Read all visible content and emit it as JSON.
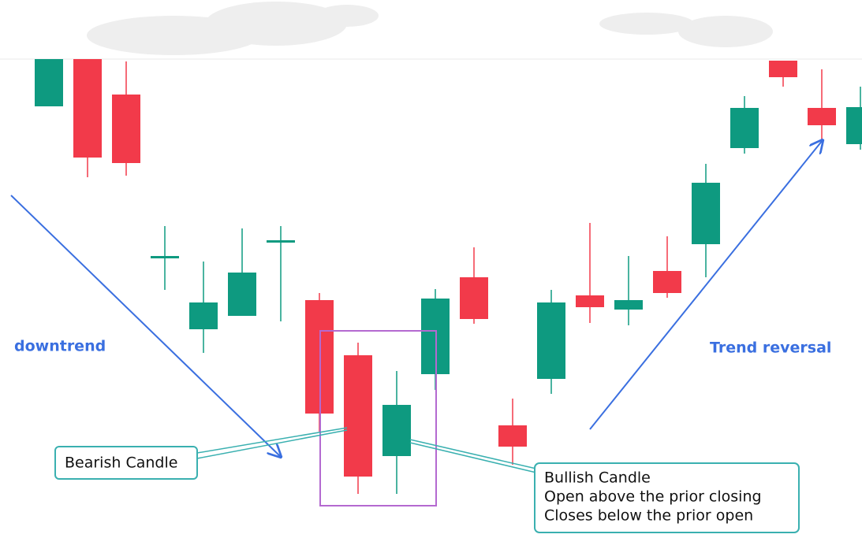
{
  "chart_data": {
    "type": "candlestick",
    "open": [
      548,
      608,
      563,
      355,
      265,
      282,
      378,
      302,
      232,
      104,
      208,
      331,
      143,
      202,
      308,
      290,
      339,
      373,
      495,
      606,
      546,
      500
    ],
    "high": [
      608,
      608,
      605,
      396,
      351,
      393,
      396,
      311,
      248,
      212,
      316,
      369,
      177,
      315,
      400,
      358,
      383,
      475,
      561,
      606,
      595,
      573
    ],
    "low": [
      548,
      458,
      460,
      315,
      235,
      282,
      275,
      135,
      56,
      56,
      188,
      272,
      93,
      183,
      273,
      270,
      305,
      331,
      488,
      573,
      506,
      493
    ],
    "close": [
      608,
      483,
      476,
      358,
      299,
      337,
      378,
      158,
      78,
      169,
      304,
      278,
      116,
      299,
      293,
      302,
      311,
      451,
      546,
      585,
      524,
      547
    ],
    "up_color": "#0e9a80",
    "down_color": "#f23a4a",
    "ylim": [
      0,
      683
    ],
    "annotations": {
      "downtrend": "downtrend",
      "reversal": "Trend reversal",
      "bearish": "Bearish Candle",
      "bullish": [
        "Bullish Candle",
        "Open above the prior closing",
        "Closes below the prior open"
      ]
    }
  }
}
